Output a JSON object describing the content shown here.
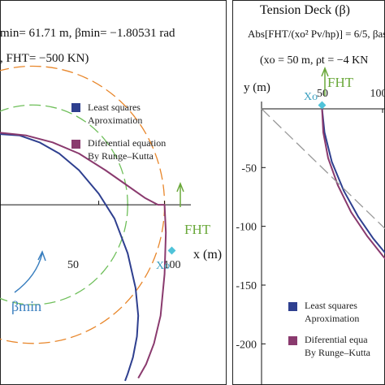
{
  "chart_data": [
    {
      "panel": "left",
      "type": "line",
      "header_lines": [
        "min= 61.71 m, βmin= −1.80531 rad",
        ", FHT= −500 KN)"
      ],
      "xlabel": "x (m)",
      "xticks": [
        50,
        100
      ],
      "xlim": [
        -25,
        120
      ],
      "ylim": [
        -130,
        95
      ],
      "point_label": "Xo",
      "force_label": "FHT",
      "angle_label": "βmin",
      "legend": [
        "Least squares\nAproximation",
        "Diferential equation\nBy Runge–Kutta"
      ],
      "series": [
        {
          "name": "Least squares\nAproximation",
          "color": "#2e3f8f",
          "x": [
            -25,
            -10,
            5,
            20,
            35,
            50,
            62,
            72,
            78,
            80,
            79,
            76,
            72,
            70
          ],
          "y": [
            51,
            50,
            45,
            37,
            25,
            8,
            -10,
            -35,
            -60,
            -80,
            -95,
            -110,
            -122,
            -127
          ]
        },
        {
          "name": "Diferential equation\nBy Runge–Kutta",
          "color": "#8a3a6e",
          "x": [
            -25,
            -5,
            15,
            35,
            55,
            70,
            85,
            95,
            100,
            101,
            100,
            97,
            92,
            86,
            80
          ],
          "y": [
            52,
            50,
            45,
            37,
            25,
            15,
            5,
            0,
            0,
            -20,
            -50,
            -80,
            -100,
            -115,
            -125
          ]
        }
      ],
      "reference_circles": [
        {
          "color": "#e8862a",
          "cx": 0,
          "cy": 0,
          "r": 100,
          "dash": true
        },
        {
          "color": "#6fbf5a",
          "cx": 0,
          "cy": 0,
          "r": 72,
          "dash": true
        }
      ]
    },
    {
      "panel": "right",
      "type": "line",
      "title": "Tension Deck (β)",
      "header_lines": [
        "Abs[FHT/(xo² Pv/hp)] = 6/5, βas",
        "(xo = 50 m, ρt = −4 KN"
      ],
      "ylabel": "y (m)",
      "yticks": [
        -50,
        -100,
        -150,
        -200
      ],
      "xticks": [
        50,
        100
      ],
      "xlim": [
        0,
        106
      ],
      "ylim": [
        -235,
        20
      ],
      "point_label": "Xo",
      "force_label": "FHT",
      "legend": [
        "Least squares\nAproximation",
        "Diferential equa\nBy Runge–Kutta"
      ],
      "series": [
        {
          "name": "Least squares\nAproximation",
          "color": "#2e3f8f",
          "x": [
            50,
            52,
            58,
            68,
            80,
            92,
            104
          ],
          "y": [
            0,
            -20,
            -45,
            -70,
            -92,
            -110,
            -125
          ]
        },
        {
          "name": "Diferential equa\nBy Runge–Kutta",
          "color": "#8a3a6e",
          "x": [
            50,
            51,
            55,
            63,
            74,
            87,
            100,
            106
          ],
          "y": [
            0,
            -20,
            -42,
            -65,
            -88,
            -108,
            -125,
            -132
          ]
        },
        {
          "name": "",
          "color": "#999999",
          "dash": true,
          "x": [
            0,
            30,
            60,
            90,
            106
          ],
          "y": [
            0,
            -30,
            -60,
            -90,
            -106
          ]
        }
      ]
    }
  ]
}
